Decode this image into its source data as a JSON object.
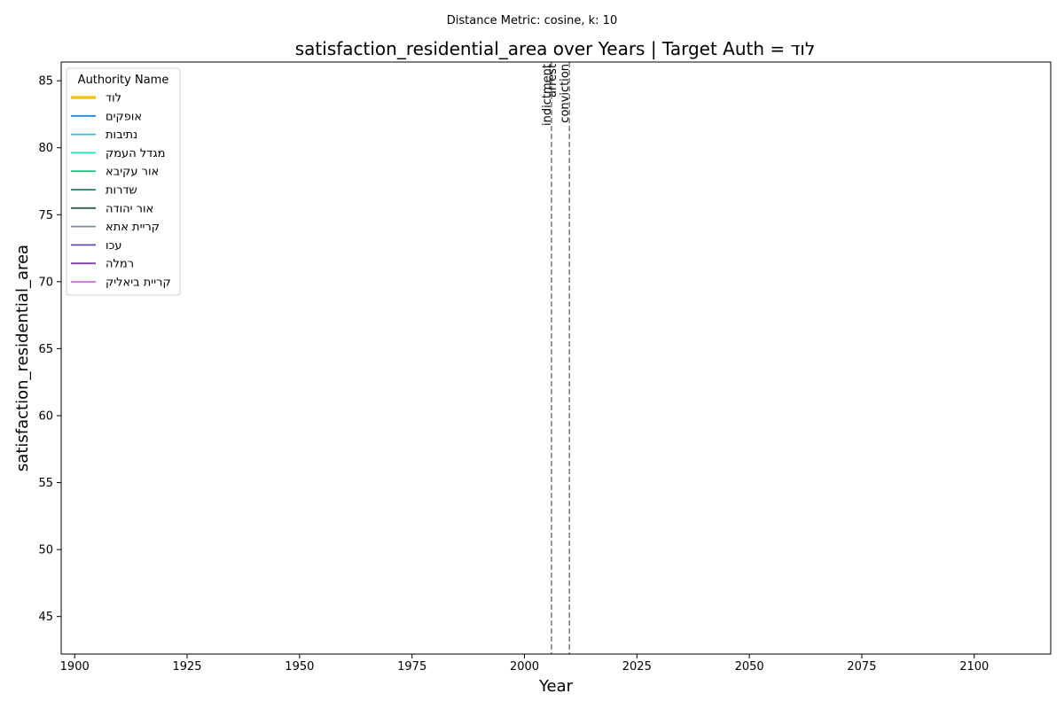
{
  "figure": {
    "suptitle": "Distance Metric: cosine, k: 10"
  },
  "chart_data": {
    "type": "line",
    "title": "satisfaction_residential_area over Years | Target Auth = לוד",
    "xlabel": "Year",
    "ylabel": "satisfaction_residential_area",
    "xlim": [
      1897,
      2117
    ],
    "ylim": [
      42.2,
      86.4
    ],
    "x_ticks": [
      1900,
      1925,
      1950,
      1975,
      2000,
      2025,
      2050,
      2075,
      2100
    ],
    "y_ticks": [
      45,
      50,
      55,
      60,
      65,
      70,
      75,
      80,
      85
    ],
    "grid": false,
    "legend": {
      "title": "Authority Name",
      "position": "top-left"
    },
    "series": [
      {
        "name": "לוד",
        "color": "#f5c518",
        "target": true,
        "values": []
      },
      {
        "name": "אופקים",
        "color": "#1e88e5",
        "values": []
      },
      {
        "name": "נתיבות",
        "color": "#26c6da",
        "values": []
      },
      {
        "name": "מגדל העמק",
        "color": "#1de9b6",
        "values": []
      },
      {
        "name": "אור עקיבא",
        "color": "#26c281",
        "values": []
      },
      {
        "name": "שדרות",
        "color": "#2e7d5b",
        "values": []
      },
      {
        "name": "אור יהודה",
        "color": "#2f5d50",
        "values": []
      },
      {
        "name": "קריית אתא",
        "color": "#78909c",
        "values": []
      },
      {
        "name": "עכו",
        "color": "#5c4fb0",
        "values": []
      },
      {
        "name": "רמלה",
        "color": "#7e3fa8",
        "values": []
      },
      {
        "name": "קריית ביאליק",
        "color": "#cc6fd6",
        "values": []
      }
    ],
    "events": [
      {
        "year": 2006,
        "labels": [
          "indictment",
          "arrest"
        ]
      },
      {
        "year": 2010,
        "labels": [
          "conviction"
        ]
      }
    ]
  }
}
